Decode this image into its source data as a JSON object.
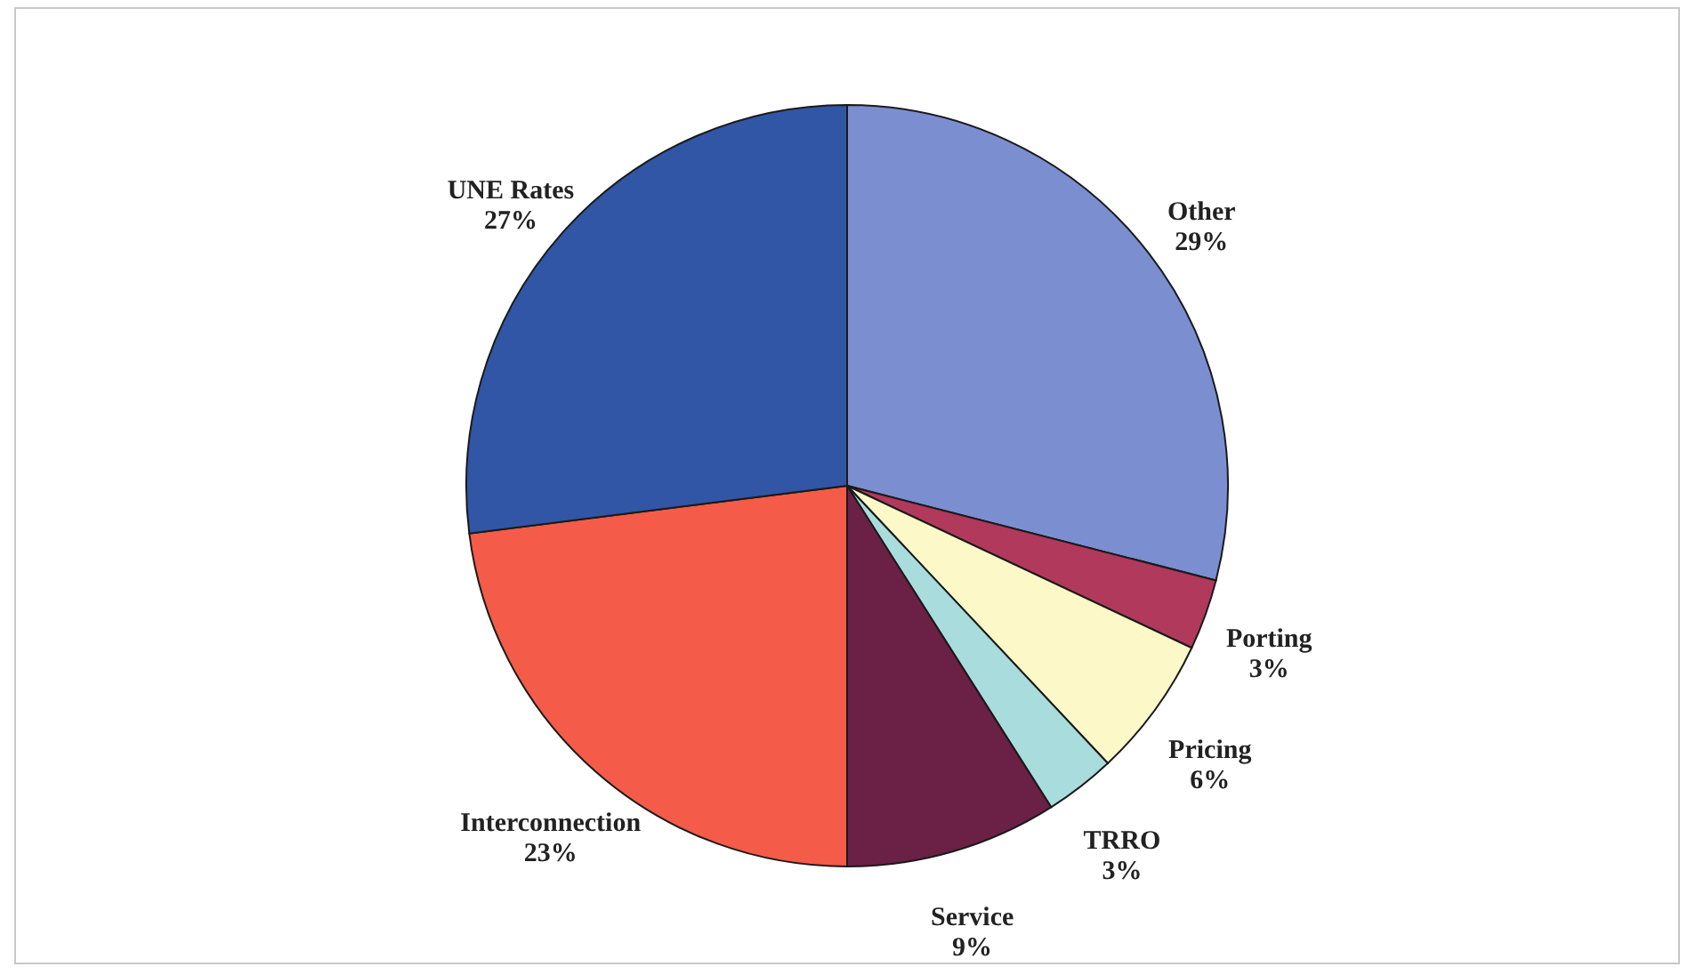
{
  "chart_data": {
    "type": "pie",
    "categories": [
      "Other",
      "Porting",
      "Pricing",
      "TRRO",
      "Service",
      "Interconnection",
      "UNE Rates"
    ],
    "values": [
      29,
      3,
      6,
      3,
      9,
      23,
      27
    ],
    "colors": [
      "#7b8ed0",
      "#b0395c",
      "#fdf8c8",
      "#a9dcdc",
      "#6b2046",
      "#f45b48",
      "#3056a5"
    ],
    "value_labels": [
      "29%",
      "3%",
      "6%",
      "3%",
      "9%",
      "23%",
      "27%"
    ]
  }
}
